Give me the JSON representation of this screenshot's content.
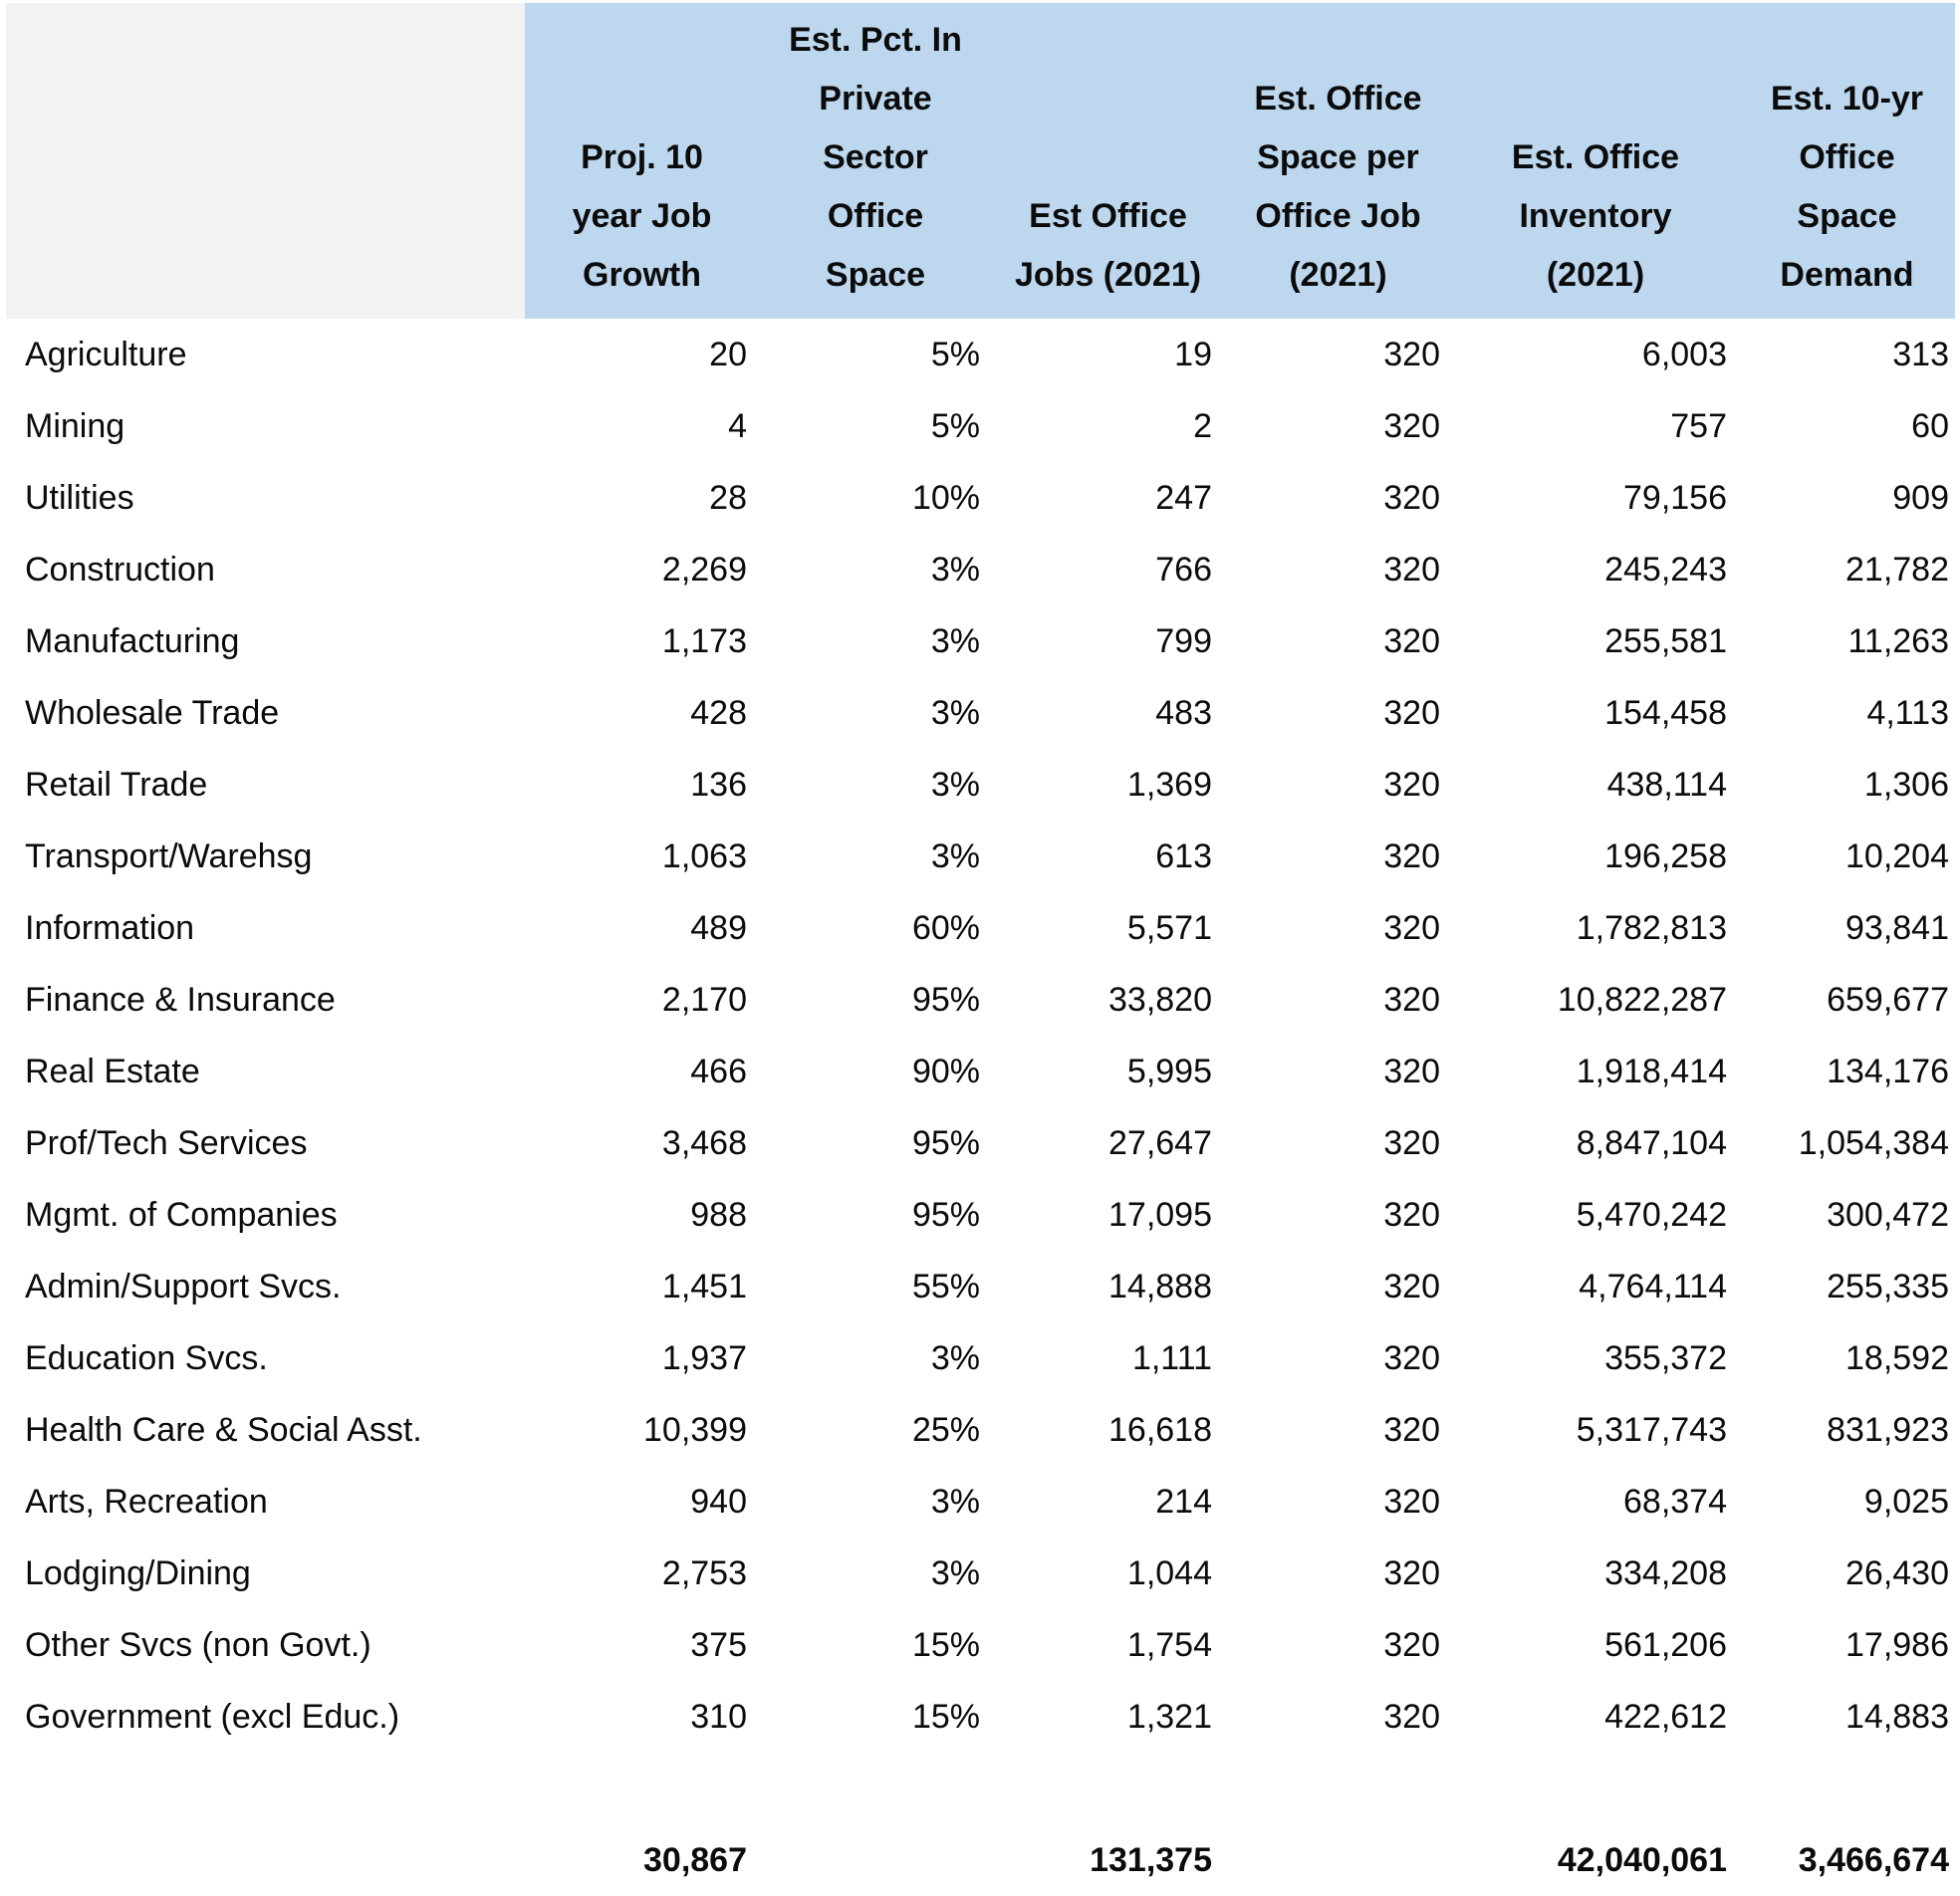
{
  "chart_data": {
    "type": "table",
    "columns": [
      {
        "id": "sector",
        "label": ""
      },
      {
        "id": "growth",
        "label": "Proj. 10\nyear Job\nGrowth"
      },
      {
        "id": "pct",
        "label": "Est. Pct. In\nPrivate\nSector\nOffice\nSpace"
      },
      {
        "id": "jobs",
        "label": "Est Office\nJobs (2021)"
      },
      {
        "id": "sqft",
        "label": "Est. Office\nSpace per\nOffice Job\n(2021)"
      },
      {
        "id": "inv",
        "label": "Est. Office\nInventory\n(2021)"
      },
      {
        "id": "demand",
        "label": "Est. 10-yr\nOffice\nSpace\nDemand"
      }
    ],
    "rows": [
      {
        "sector": "Agriculture",
        "values": [
          "20",
          "5%",
          "19",
          "320",
          "6,003",
          "313"
        ]
      },
      {
        "sector": "Mining",
        "values": [
          "4",
          "5%",
          "2",
          "320",
          "757",
          "60"
        ]
      },
      {
        "sector": "Utilities",
        "values": [
          "28",
          "10%",
          "247",
          "320",
          "79,156",
          "909"
        ]
      },
      {
        "sector": "Construction",
        "values": [
          "2,269",
          "3%",
          "766",
          "320",
          "245,243",
          "21,782"
        ]
      },
      {
        "sector": "Manufacturing",
        "values": [
          "1,173",
          "3%",
          "799",
          "320",
          "255,581",
          "11,263"
        ]
      },
      {
        "sector": "Wholesale Trade",
        "values": [
          "428",
          "3%",
          "483",
          "320",
          "154,458",
          "4,113"
        ]
      },
      {
        "sector": "Retail Trade",
        "values": [
          "136",
          "3%",
          "1,369",
          "320",
          "438,114",
          "1,306"
        ]
      },
      {
        "sector": "Transport/Warehsg",
        "values": [
          "1,063",
          "3%",
          "613",
          "320",
          "196,258",
          "10,204"
        ]
      },
      {
        "sector": "Information",
        "values": [
          "489",
          "60%",
          "5,571",
          "320",
          "1,782,813",
          "93,841"
        ]
      },
      {
        "sector": "Finance & Insurance",
        "values": [
          "2,170",
          "95%",
          "33,820",
          "320",
          "10,822,287",
          "659,677"
        ]
      },
      {
        "sector": "Real Estate",
        "values": [
          "466",
          "90%",
          "5,995",
          "320",
          "1,918,414",
          "134,176"
        ]
      },
      {
        "sector": "Prof/Tech Services",
        "values": [
          "3,468",
          "95%",
          "27,647",
          "320",
          "8,847,104",
          "1,054,384"
        ]
      },
      {
        "sector": "Mgmt. of Companies",
        "values": [
          "988",
          "95%",
          "17,095",
          "320",
          "5,470,242",
          "300,472"
        ]
      },
      {
        "sector": "Admin/Support Svcs.",
        "values": [
          "1,451",
          "55%",
          "14,888",
          "320",
          "4,764,114",
          "255,335"
        ]
      },
      {
        "sector": "Education Svcs.",
        "values": [
          "1,937",
          "3%",
          "1,111",
          "320",
          "355,372",
          "18,592"
        ]
      },
      {
        "sector": "Health Care & Social Asst.",
        "values": [
          "10,399",
          "25%",
          "16,618",
          "320",
          "5,317,743",
          "831,923"
        ]
      },
      {
        "sector": "Arts, Recreation",
        "values": [
          "940",
          "3%",
          "214",
          "320",
          "68,374",
          "9,025"
        ]
      },
      {
        "sector": "Lodging/Dining",
        "values": [
          "2,753",
          "3%",
          "1,044",
          "320",
          "334,208",
          "26,430"
        ]
      },
      {
        "sector": "Other Svcs (non Govt.)",
        "values": [
          "375",
          "15%",
          "1,754",
          "320",
          "561,206",
          "17,986"
        ]
      },
      {
        "sector": "Government (excl Educ.)",
        "values": [
          "310",
          "15%",
          "1,321",
          "320",
          "422,612",
          "14,883"
        ]
      }
    ],
    "totals": {
      "sector": "",
      "values": [
        "30,867",
        "",
        "131,375",
        "",
        "42,040,061",
        "3,466,674"
      ]
    },
    "layout": {
      "grid": false,
      "header_wrap": "explicit-linebreaks",
      "number_alignment": "right"
    }
  },
  "colors": {
    "header_blue": "#bdd7ee",
    "corner_gray": "#f2f2f2",
    "text": "#0b0b0b",
    "background": "#ffffff"
  }
}
